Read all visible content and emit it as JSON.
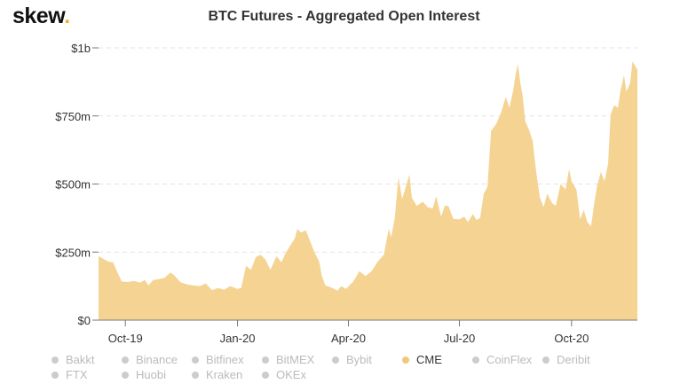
{
  "brand": {
    "name": "skew",
    "dot": "."
  },
  "chart_data": {
    "type": "area",
    "title": "BTC Futures - Aggregated Open Interest",
    "xlabel": "",
    "ylabel": "",
    "x_start": "2019-09-09",
    "x_end": "2020-11-24",
    "x_ticks": [
      {
        "date": "2019-10-01",
        "label": "Oct-19"
      },
      {
        "date": "2020-01-01",
        "label": "Jan-20"
      },
      {
        "date": "2020-04-01",
        "label": "Apr-20"
      },
      {
        "date": "2020-07-01",
        "label": "Jul-20"
      },
      {
        "date": "2020-10-01",
        "label": "Oct-20"
      }
    ],
    "y_ticks": [
      {
        "value": 0,
        "label": "$0"
      },
      {
        "value": 250,
        "label": "$250m"
      },
      {
        "value": 500,
        "label": "$500m"
      },
      {
        "value": 750,
        "label": "$750m"
      },
      {
        "value": 1000,
        "label": "$1b"
      }
    ],
    "ylim": [
      0,
      1000
    ],
    "y_unit": "USD millions",
    "grid": true,
    "color": "#f5d393",
    "series": [
      {
        "name": "CME",
        "points": [
          [
            "2019-09-09",
            235
          ],
          [
            "2019-09-13",
            225
          ],
          [
            "2019-09-17",
            215
          ],
          [
            "2019-09-21",
            212
          ],
          [
            "2019-09-24",
            180
          ],
          [
            "2019-09-28",
            142
          ],
          [
            "2019-10-03",
            140
          ],
          [
            "2019-10-08",
            144
          ],
          [
            "2019-10-13",
            138
          ],
          [
            "2019-10-17",
            148
          ],
          [
            "2019-10-20",
            128
          ],
          [
            "2019-10-24",
            148
          ],
          [
            "2019-10-28",
            150
          ],
          [
            "2019-11-02",
            155
          ],
          [
            "2019-11-07",
            175
          ],
          [
            "2019-11-10",
            165
          ],
          [
            "2019-11-15",
            140
          ],
          [
            "2019-11-20",
            132
          ],
          [
            "2019-11-25",
            128
          ],
          [
            "2019-12-01",
            125
          ],
          [
            "2019-12-06",
            135
          ],
          [
            "2019-12-11",
            110
          ],
          [
            "2019-12-16",
            118
          ],
          [
            "2019-12-21",
            112
          ],
          [
            "2019-12-26",
            125
          ],
          [
            "2020-01-01",
            115
          ],
          [
            "2020-01-04",
            118
          ],
          [
            "2020-01-08",
            200
          ],
          [
            "2020-01-12",
            185
          ],
          [
            "2020-01-16",
            232
          ],
          [
            "2020-01-20",
            240
          ],
          [
            "2020-01-24",
            222
          ],
          [
            "2020-01-28",
            185
          ],
          [
            "2020-02-02",
            235
          ],
          [
            "2020-02-06",
            212
          ],
          [
            "2020-02-09",
            242
          ],
          [
            "2020-02-13",
            272
          ],
          [
            "2020-02-17",
            300
          ],
          [
            "2020-02-19",
            335
          ],
          [
            "2020-02-22",
            322
          ],
          [
            "2020-02-26",
            330
          ],
          [
            "2020-03-01",
            285
          ],
          [
            "2020-03-04",
            250
          ],
          [
            "2020-03-08",
            215
          ],
          [
            "2020-03-10",
            165
          ],
          [
            "2020-03-13",
            128
          ],
          [
            "2020-03-18",
            120
          ],
          [
            "2020-03-23",
            108
          ],
          [
            "2020-03-26",
            125
          ],
          [
            "2020-03-30",
            115
          ],
          [
            "2020-04-05",
            142
          ],
          [
            "2020-04-10",
            180
          ],
          [
            "2020-04-15",
            162
          ],
          [
            "2020-04-20",
            180
          ],
          [
            "2020-04-25",
            215
          ],
          [
            "2020-04-30",
            240
          ],
          [
            "2020-05-04",
            335
          ],
          [
            "2020-05-06",
            305
          ],
          [
            "2020-05-09",
            375
          ],
          [
            "2020-05-12",
            525
          ],
          [
            "2020-05-15",
            445
          ],
          [
            "2020-05-18",
            490
          ],
          [
            "2020-05-21",
            535
          ],
          [
            "2020-05-23",
            450
          ],
          [
            "2020-05-27",
            420
          ],
          [
            "2020-06-01",
            435
          ],
          [
            "2020-06-05",
            415
          ],
          [
            "2020-06-09",
            410
          ],
          [
            "2020-06-12",
            455
          ],
          [
            "2020-06-16",
            380
          ],
          [
            "2020-06-19",
            420
          ],
          [
            "2020-06-22",
            420
          ],
          [
            "2020-06-26",
            372
          ],
          [
            "2020-07-01",
            370
          ],
          [
            "2020-07-05",
            380
          ],
          [
            "2020-07-08",
            360
          ],
          [
            "2020-07-12",
            390
          ],
          [
            "2020-07-15",
            368
          ],
          [
            "2020-07-18",
            375
          ],
          [
            "2020-07-21",
            465
          ],
          [
            "2020-07-24",
            490
          ],
          [
            "2020-07-27",
            695
          ],
          [
            "2020-07-31",
            720
          ],
          [
            "2020-08-04",
            760
          ],
          [
            "2020-08-08",
            820
          ],
          [
            "2020-08-11",
            780
          ],
          [
            "2020-08-14",
            840
          ],
          [
            "2020-08-16",
            900
          ],
          [
            "2020-08-18",
            940
          ],
          [
            "2020-08-20",
            870
          ],
          [
            "2020-08-22",
            820
          ],
          [
            "2020-08-24",
            730
          ],
          [
            "2020-08-27",
            700
          ],
          [
            "2020-08-30",
            660
          ],
          [
            "2020-09-02",
            545
          ],
          [
            "2020-09-05",
            450
          ],
          [
            "2020-09-08",
            415
          ],
          [
            "2020-09-11",
            465
          ],
          [
            "2020-09-15",
            430
          ],
          [
            "2020-09-18",
            420
          ],
          [
            "2020-09-22",
            500
          ],
          [
            "2020-09-26",
            480
          ],
          [
            "2020-09-29",
            555
          ],
          [
            "2020-10-01",
            510
          ],
          [
            "2020-10-05",
            480
          ],
          [
            "2020-10-08",
            370
          ],
          [
            "2020-10-11",
            405
          ],
          [
            "2020-10-14",
            360
          ],
          [
            "2020-10-17",
            345
          ],
          [
            "2020-10-20",
            440
          ],
          [
            "2020-10-22",
            495
          ],
          [
            "2020-10-25",
            545
          ],
          [
            "2020-10-28",
            510
          ],
          [
            "2020-10-31",
            575
          ],
          [
            "2020-11-02",
            755
          ],
          [
            "2020-11-05",
            790
          ],
          [
            "2020-11-08",
            780
          ],
          [
            "2020-11-10",
            840
          ],
          [
            "2020-11-13",
            900
          ],
          [
            "2020-11-15",
            840
          ],
          [
            "2020-11-18",
            870
          ],
          [
            "2020-11-20",
            950
          ],
          [
            "2020-11-24",
            920
          ]
        ]
      }
    ]
  },
  "legend": {
    "rows": [
      [
        {
          "label": "Bakkt",
          "active": false
        },
        {
          "label": "Binance",
          "active": false
        },
        {
          "label": "Bitfinex",
          "active": false
        },
        {
          "label": "BitMEX",
          "active": false
        },
        {
          "label": "Bybit",
          "active": false
        },
        {
          "label": "CME",
          "active": true
        },
        {
          "label": "CoinFlex",
          "active": false
        },
        {
          "label": "Deribit",
          "active": false
        }
      ],
      [
        {
          "label": "FTX",
          "active": false
        },
        {
          "label": "Huobi",
          "active": false
        },
        {
          "label": "Kraken",
          "active": false
        },
        {
          "label": "OKEx",
          "active": false
        }
      ]
    ]
  }
}
